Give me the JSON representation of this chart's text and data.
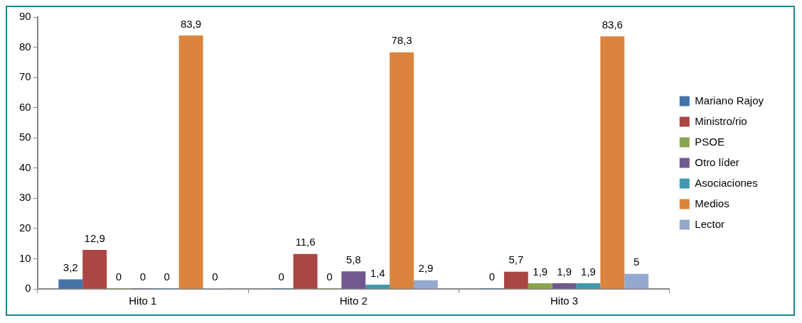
{
  "chart_data": {
    "type": "bar",
    "categories": [
      "Hito 1",
      "Hito 2",
      "Hito 3"
    ],
    "series": [
      {
        "name": "Mariano Rajoy",
        "color": "#4572a7",
        "values": [
          3.2,
          0,
          0
        ],
        "value_labels": [
          "3,2",
          "0",
          "0"
        ]
      },
      {
        "name": "Ministro/rio",
        "color": "#aa4643",
        "values": [
          12.9,
          11.6,
          5.7
        ],
        "value_labels": [
          "12,9",
          "11,6",
          "5,7"
        ]
      },
      {
        "name": "PSOE",
        "color": "#89a54e",
        "values": [
          0,
          0,
          1.9
        ],
        "value_labels": [
          "0",
          "0",
          "1,9"
        ]
      },
      {
        "name": "Otro líder",
        "color": "#71588f",
        "values": [
          0,
          5.8,
          1.9
        ],
        "value_labels": [
          "0",
          "5,8",
          "1,9"
        ]
      },
      {
        "name": "Asociaciones",
        "color": "#4198af",
        "values": [
          0,
          1.4,
          1.9
        ],
        "value_labels": [
          "0",
          "1,4",
          "1,9"
        ]
      },
      {
        "name": "Medios",
        "color": "#db843d",
        "values": [
          83.9,
          78.3,
          83.6
        ],
        "value_labels": [
          "83,9",
          "78,3",
          "83,6"
        ]
      },
      {
        "name": "Lector",
        "color": "#93a9cf",
        "values": [
          0,
          2.9,
          5
        ],
        "value_labels": [
          "0",
          "2,9",
          "5"
        ]
      }
    ],
    "ylim": [
      0,
      90
    ],
    "yticks": [
      0,
      10,
      20,
      30,
      40,
      50,
      60,
      70,
      80,
      90
    ],
    "grid": false,
    "legend": "right"
  }
}
